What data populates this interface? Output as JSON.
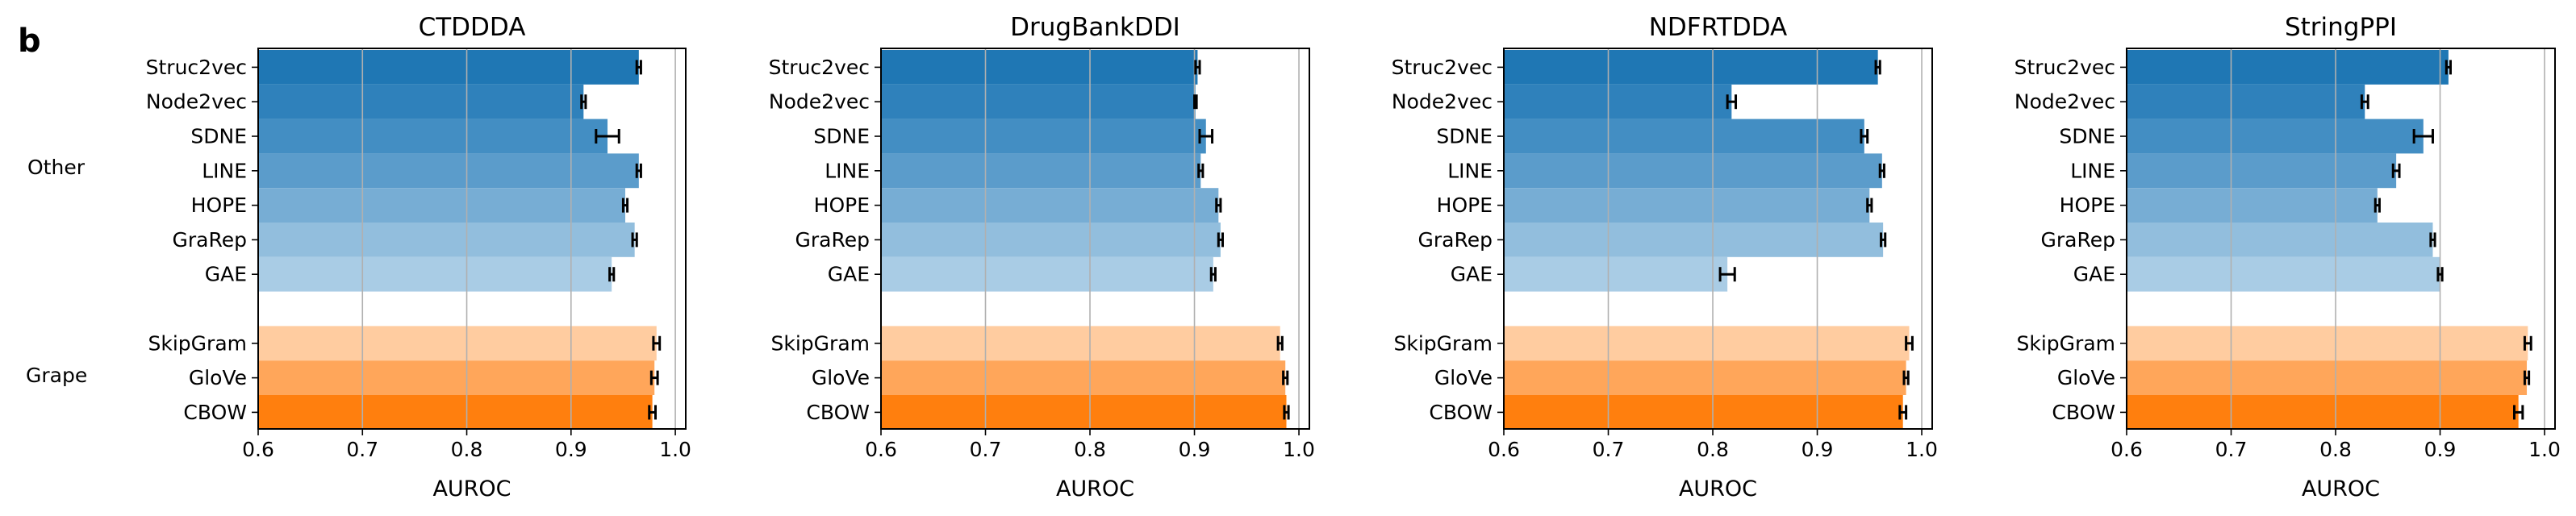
{
  "panel_letter": "b",
  "group_labels": {
    "other": "Other",
    "grape": "Grape"
  },
  "colors": {
    "blue": [
      "#1f77b4",
      "#2f81bb",
      "#438ec3",
      "#5b9ccb",
      "#77add4",
      "#92bedd",
      "#a9cce5"
    ],
    "orange": [
      "#ffcca0",
      "#ffa65a",
      "#ff7f0e"
    ],
    "grid": "#b0b0b0",
    "errorbar": "#000000"
  },
  "chart_data": [
    {
      "type": "bar",
      "orientation": "horizontal",
      "title": "CTDDDA",
      "xlabel": "AUROC",
      "xlim": [
        0.6,
        1.01
      ],
      "xticks": [
        "0.6",
        "0.7",
        "0.8",
        "0.9",
        "1.0"
      ],
      "grid": "vertical",
      "categories": [
        "Struc2vec",
        "Node2vec",
        "SDNE",
        "LINE",
        "HOPE",
        "GraRep",
        "GAE",
        "SkipGram",
        "GloVe",
        "CBOW"
      ],
      "groups": [
        "Other",
        "Other",
        "Other",
        "Other",
        "Other",
        "Other",
        "Other",
        "Grape",
        "Grape",
        "Grape"
      ],
      "values": [
        0.965,
        0.912,
        0.935,
        0.965,
        0.952,
        0.961,
        0.939,
        0.982,
        0.98,
        0.978
      ],
      "errors": [
        0.002,
        0.002,
        0.011,
        0.002,
        0.002,
        0.002,
        0.002,
        0.003,
        0.003,
        0.003
      ]
    },
    {
      "type": "bar",
      "orientation": "horizontal",
      "title": "DrugBankDDI",
      "xlabel": "AUROC",
      "xlim": [
        0.6,
        1.01
      ],
      "xticks": [
        "0.6",
        "0.7",
        "0.8",
        "0.9",
        "1.0"
      ],
      "grid": "vertical",
      "categories": [
        "Struc2vec",
        "Node2vec",
        "SDNE",
        "LINE",
        "HOPE",
        "GraRep",
        "GAE",
        "SkipGram",
        "GloVe",
        "CBOW"
      ],
      "groups": [
        "Other",
        "Other",
        "Other",
        "Other",
        "Other",
        "Other",
        "Other",
        "Grape",
        "Grape",
        "Grape"
      ],
      "values": [
        0.903,
        0.901,
        0.911,
        0.906,
        0.923,
        0.925,
        0.918,
        0.982,
        0.987,
        0.988
      ],
      "errors": [
        0.002,
        0.001,
        0.006,
        0.002,
        0.002,
        0.002,
        0.002,
        0.002,
        0.002,
        0.002
      ]
    },
    {
      "type": "bar",
      "orientation": "horizontal",
      "title": "NDFRTDDA",
      "xlabel": "AUROC",
      "xlim": [
        0.6,
        1.01
      ],
      "xticks": [
        "0.6",
        "0.7",
        "0.8",
        "0.9",
        "1.0"
      ],
      "grid": "vertical",
      "categories": [
        "Struc2vec",
        "Node2vec",
        "SDNE",
        "LINE",
        "HOPE",
        "GraRep",
        "GAE",
        "SkipGram",
        "GloVe",
        "CBOW"
      ],
      "groups": [
        "Other",
        "Other",
        "Other",
        "Other",
        "Other",
        "Other",
        "Other",
        "Grape",
        "Grape",
        "Grape"
      ],
      "values": [
        0.958,
        0.818,
        0.945,
        0.962,
        0.95,
        0.963,
        0.814,
        0.988,
        0.985,
        0.982
      ],
      "errors": [
        0.002,
        0.004,
        0.003,
        0.002,
        0.002,
        0.002,
        0.007,
        0.003,
        0.002,
        0.003
      ]
    },
    {
      "type": "bar",
      "orientation": "horizontal",
      "title": "StringPPI",
      "xlabel": "AUROC",
      "xlim": [
        0.6,
        1.01
      ],
      "xticks": [
        "0.6",
        "0.7",
        "0.8",
        "0.9",
        "1.0"
      ],
      "grid": "vertical",
      "categories": [
        "Struc2vec",
        "Node2vec",
        "SDNE",
        "LINE",
        "HOPE",
        "GraRep",
        "GAE",
        "SkipGram",
        "GloVe",
        "CBOW"
      ],
      "groups": [
        "Other",
        "Other",
        "Other",
        "Other",
        "Other",
        "Other",
        "Other",
        "Grape",
        "Grape",
        "Grape"
      ],
      "values": [
        0.908,
        0.828,
        0.884,
        0.858,
        0.84,
        0.893,
        0.9,
        0.984,
        0.983,
        0.975
      ],
      "errors": [
        0.002,
        0.003,
        0.009,
        0.003,
        0.002,
        0.002,
        0.002,
        0.003,
        0.002,
        0.004
      ]
    }
  ]
}
